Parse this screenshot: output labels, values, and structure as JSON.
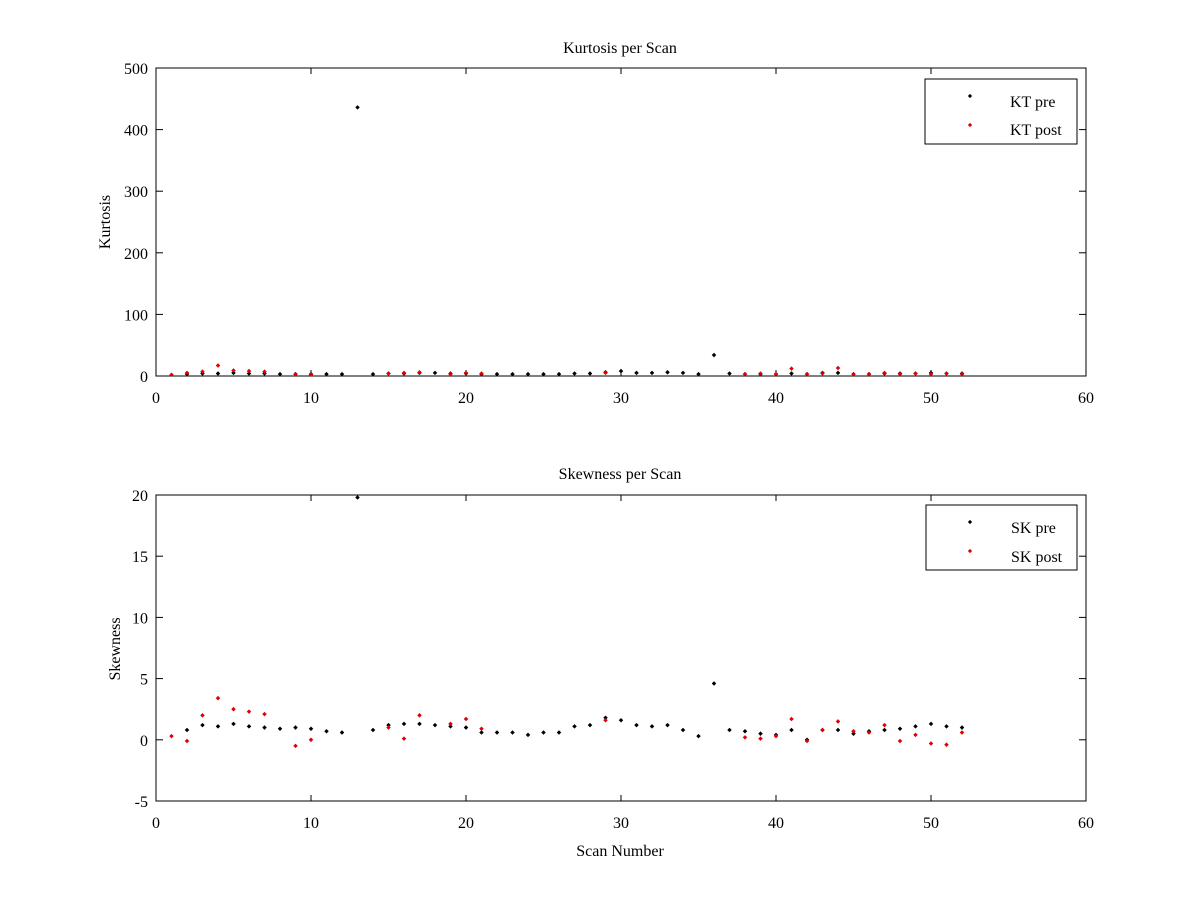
{
  "chart_data": [
    {
      "type": "scatter",
      "title": "Kurtosis per Scan",
      "xlabel": "",
      "ylabel": "Kurtosis",
      "xlim": [
        0,
        60
      ],
      "ylim": [
        0,
        500
      ],
      "xticks": [
        "0",
        "10",
        "20",
        "30",
        "40",
        "50",
        "60"
      ],
      "yticks": [
        "0",
        "100",
        "200",
        "300",
        "400",
        "500"
      ],
      "grid": false,
      "legend": "top-right",
      "series": [
        {
          "name": "KT pre",
          "color": "#000000",
          "x": [
            2,
            3,
            4,
            5,
            6,
            7,
            8,
            9,
            10,
            11,
            12,
            13,
            14,
            15,
            16,
            17,
            18,
            19,
            20,
            21,
            22,
            23,
            24,
            25,
            26,
            27,
            28,
            29,
            30,
            31,
            32,
            33,
            34,
            35,
            36,
            37,
            38,
            39,
            40,
            41,
            42,
            43,
            44,
            45,
            46,
            47,
            48,
            49,
            50,
            51,
            52
          ],
          "y": [
            3,
            4,
            4,
            5,
            4,
            4,
            3,
            3,
            3,
            3,
            3,
            436,
            3,
            4,
            4,
            5,
            5,
            4,
            4,
            3,
            3,
            3,
            3,
            3,
            3,
            4,
            4,
            6,
            8,
            5,
            5,
            6,
            5,
            3,
            34,
            4,
            3,
            3,
            3,
            4,
            3,
            5,
            5,
            3,
            3,
            4,
            4,
            4,
            5,
            4,
            4
          ]
        },
        {
          "name": "KT post",
          "color": "#e00000",
          "x": [
            1,
            2,
            3,
            4,
            5,
            6,
            7,
            9,
            10,
            15,
            16,
            17,
            19,
            20,
            21,
            29,
            38,
            39,
            40,
            41,
            42,
            43,
            44,
            45,
            46,
            47,
            48,
            49,
            50,
            51,
            52
          ],
          "y": [
            2,
            5,
            7,
            17,
            9,
            8,
            7,
            3,
            2,
            4,
            5,
            6,
            3,
            5,
            4,
            5,
            3,
            4,
            3,
            12,
            3,
            4,
            13,
            3,
            3,
            5,
            3,
            4,
            3,
            4,
            3
          ]
        }
      ]
    },
    {
      "type": "scatter",
      "title": "Skewness per Scan",
      "xlabel": "Scan Number",
      "ylabel": "Skewness",
      "xlim": [
        0,
        60
      ],
      "ylim": [
        -5,
        20
      ],
      "xticks": [
        "0",
        "10",
        "20",
        "30",
        "40",
        "50",
        "60"
      ],
      "yticks": [
        "-5",
        "0",
        "5",
        "10",
        "15",
        "20"
      ],
      "grid": false,
      "legend": "top-right",
      "series": [
        {
          "name": "SK pre",
          "color": "#000000",
          "x": [
            2,
            3,
            4,
            5,
            6,
            7,
            8,
            9,
            10,
            11,
            12,
            13,
            14,
            15,
            16,
            17,
            18,
            19,
            20,
            21,
            22,
            23,
            24,
            25,
            26,
            27,
            28,
            29,
            30,
            31,
            32,
            33,
            34,
            35,
            36,
            37,
            38,
            39,
            40,
            41,
            42,
            43,
            44,
            45,
            46,
            47,
            48,
            49,
            50,
            51,
            52
          ],
          "y": [
            0.8,
            1.2,
            1.1,
            1.3,
            1.1,
            1.0,
            0.9,
            1.0,
            0.9,
            0.7,
            0.6,
            19.8,
            0.8,
            1.2,
            1.3,
            1.3,
            1.2,
            1.1,
            1.0,
            0.6,
            0.6,
            0.6,
            0.4,
            0.6,
            0.6,
            1.1,
            1.2,
            1.8,
            1.6,
            1.2,
            1.1,
            1.2,
            0.8,
            0.3,
            4.6,
            0.8,
            0.7,
            0.5,
            0.4,
            0.8,
            0.0,
            0.8,
            0.8,
            0.5,
            0.7,
            0.8,
            0.9,
            1.1,
            1.3,
            1.1,
            1.0
          ]
        },
        {
          "name": "SK post",
          "color": "#e00000",
          "x": [
            1,
            2,
            3,
            4,
            5,
            6,
            7,
            9,
            10,
            15,
            16,
            17,
            19,
            20,
            21,
            29,
            38,
            39,
            40,
            41,
            42,
            43,
            44,
            45,
            46,
            47,
            48,
            49,
            50,
            51,
            52
          ],
          "y": [
            0.3,
            -0.1,
            2.0,
            3.4,
            2.5,
            2.3,
            2.1,
            -0.5,
            0.0,
            1.0,
            0.1,
            2.0,
            1.3,
            1.7,
            0.9,
            1.6,
            0.2,
            0.1,
            0.3,
            1.7,
            -0.1,
            0.8,
            1.5,
            0.7,
            0.6,
            1.2,
            -0.1,
            0.4,
            -0.3,
            -0.4,
            0.6
          ]
        }
      ]
    }
  ]
}
